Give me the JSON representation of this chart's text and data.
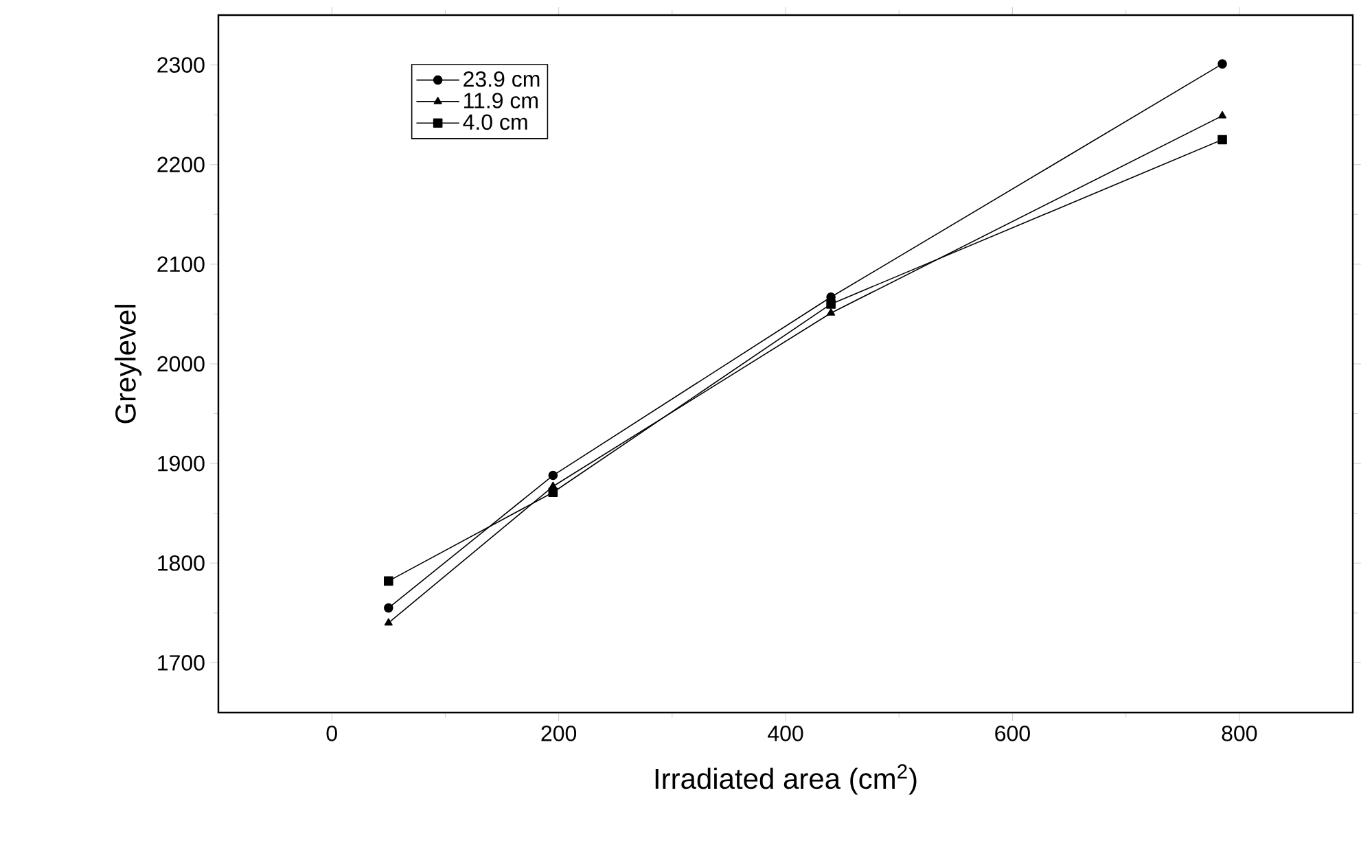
{
  "chart_data": {
    "type": "line",
    "xlabel": "Irradiated area (cm$^{2}$)",
    "ylabel": "Greylevel",
    "x": [
      50,
      195,
      440,
      785
    ],
    "series": [
      {
        "name": "23.9 cm",
        "color": "#000000",
        "marker": "circle",
        "values": [
          1755,
          1888,
          2067,
          2301
        ]
      },
      {
        "name": "11.9 cm",
        "color": "#000000",
        "marker": "triangle",
        "values": [
          1740,
          1877,
          2051,
          2249
        ]
      },
      {
        "name": "4.0 cm",
        "color": "#000000",
        "marker": "square",
        "values": [
          1782,
          1871,
          2060,
          2225
        ]
      }
    ],
    "xlim": [
      -100,
      900
    ],
    "ylim": [
      1650,
      2350
    ],
    "xticks": [
      0,
      200,
      400,
      600,
      800
    ],
    "yticks": [
      1700,
      1800,
      1900,
      2000,
      2100,
      2200,
      2300
    ],
    "legend": "top left",
    "grid": false,
    "line_style": "solid"
  }
}
